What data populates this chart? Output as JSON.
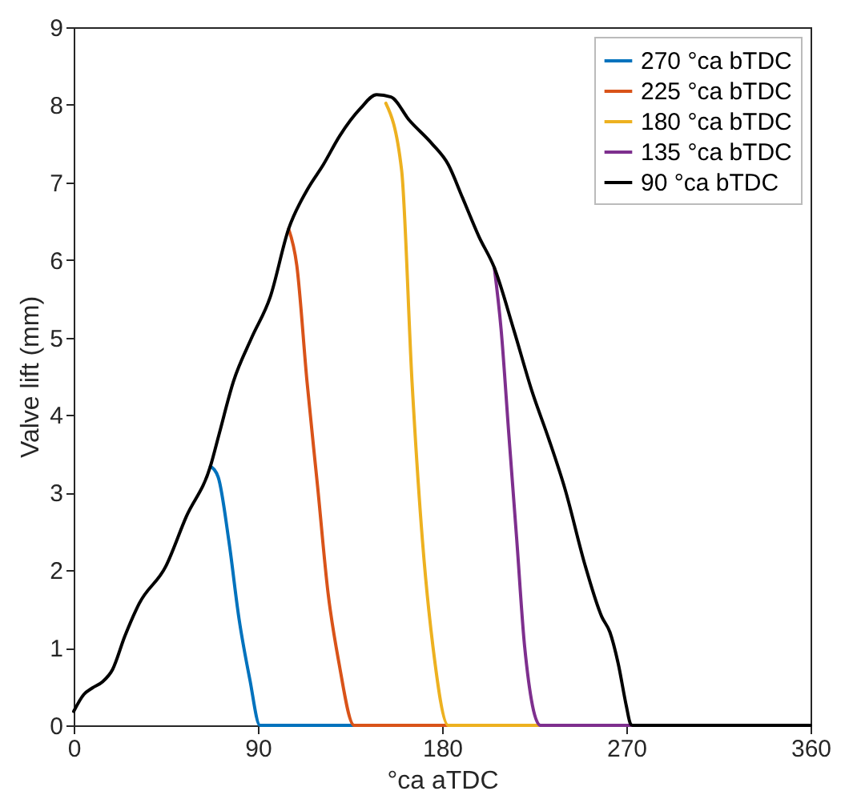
{
  "chart_data": {
    "type": "line",
    "xlabel": "°ca aTDC",
    "ylabel": "Valve lift (mm)",
    "xlim": [
      0,
      360
    ],
    "ylim": [
      0,
      9
    ],
    "xticks": [
      0,
      90,
      180,
      270,
      360
    ],
    "yticks": [
      0,
      1,
      2,
      3,
      4,
      5,
      6,
      7,
      8,
      9
    ],
    "grid": false,
    "legend": "top right",
    "line_style": "solid",
    "marker": "none",
    "series": [
      {
        "name": "270 °ca bTDC",
        "color": "#0072bd",
        "x": [
          66.8,
          70.6,
          75.8,
          80.8,
          86,
          91,
          137
        ],
        "values": [
          3.34,
          3.2,
          2.38,
          1.37,
          0.6,
          0,
          0
        ]
      },
      {
        "name": "225 °ca bTDC",
        "color": "#d95319",
        "x": [
          105,
          109,
          114,
          119.2,
          124.3,
          129.5,
          137,
          183
        ],
        "values": [
          6.4,
          5.93,
          4.43,
          3.07,
          1.7,
          0.82,
          0,
          0
        ]
      },
      {
        "name": "180 °ca bTDC",
        "color": "#edb120",
        "x": [
          152.5,
          160.2,
          165.3,
          170.4,
          175.5,
          183,
          228
        ],
        "values": [
          8.02,
          7.16,
          4.43,
          2.38,
          1.02,
          0,
          0
        ]
      },
      {
        "name": "135 °ca bTDC",
        "color": "#7e2f8e",
        "x": [
          205.5,
          208.8,
          212.6,
          216.5,
          220.3,
          228,
          273
        ],
        "values": [
          5.9,
          5.11,
          3.75,
          2.38,
          1.02,
          0,
          0
        ]
      },
      {
        "name": "90 °ca bTDC",
        "color": "#000000",
        "x": [
          0,
          5,
          9,
          14,
          19,
          25,
          32,
          45,
          55,
          66.8,
          71,
          78,
          87,
          96,
          105,
          114,
          122,
          130,
          140,
          148,
          155,
          164,
          175,
          183,
          190,
          198,
          205.5,
          215,
          224,
          232,
          240,
          250,
          258,
          262,
          266,
          270,
          272,
          273,
          360
        ],
        "values": [
          0.18,
          0.4,
          0.48,
          0.56,
          0.72,
          1.15,
          1.57,
          2.05,
          2.69,
          3.34,
          3.75,
          4.43,
          5.0,
          5.52,
          6.4,
          6.9,
          7.23,
          7.6,
          7.95,
          8.13,
          8.1,
          7.8,
          7.5,
          7.23,
          6.8,
          6.3,
          5.9,
          5.1,
          4.3,
          3.7,
          3.05,
          2.05,
          1.4,
          1.2,
          0.8,
          0.25,
          0.02,
          0,
          0
        ]
      }
    ]
  }
}
